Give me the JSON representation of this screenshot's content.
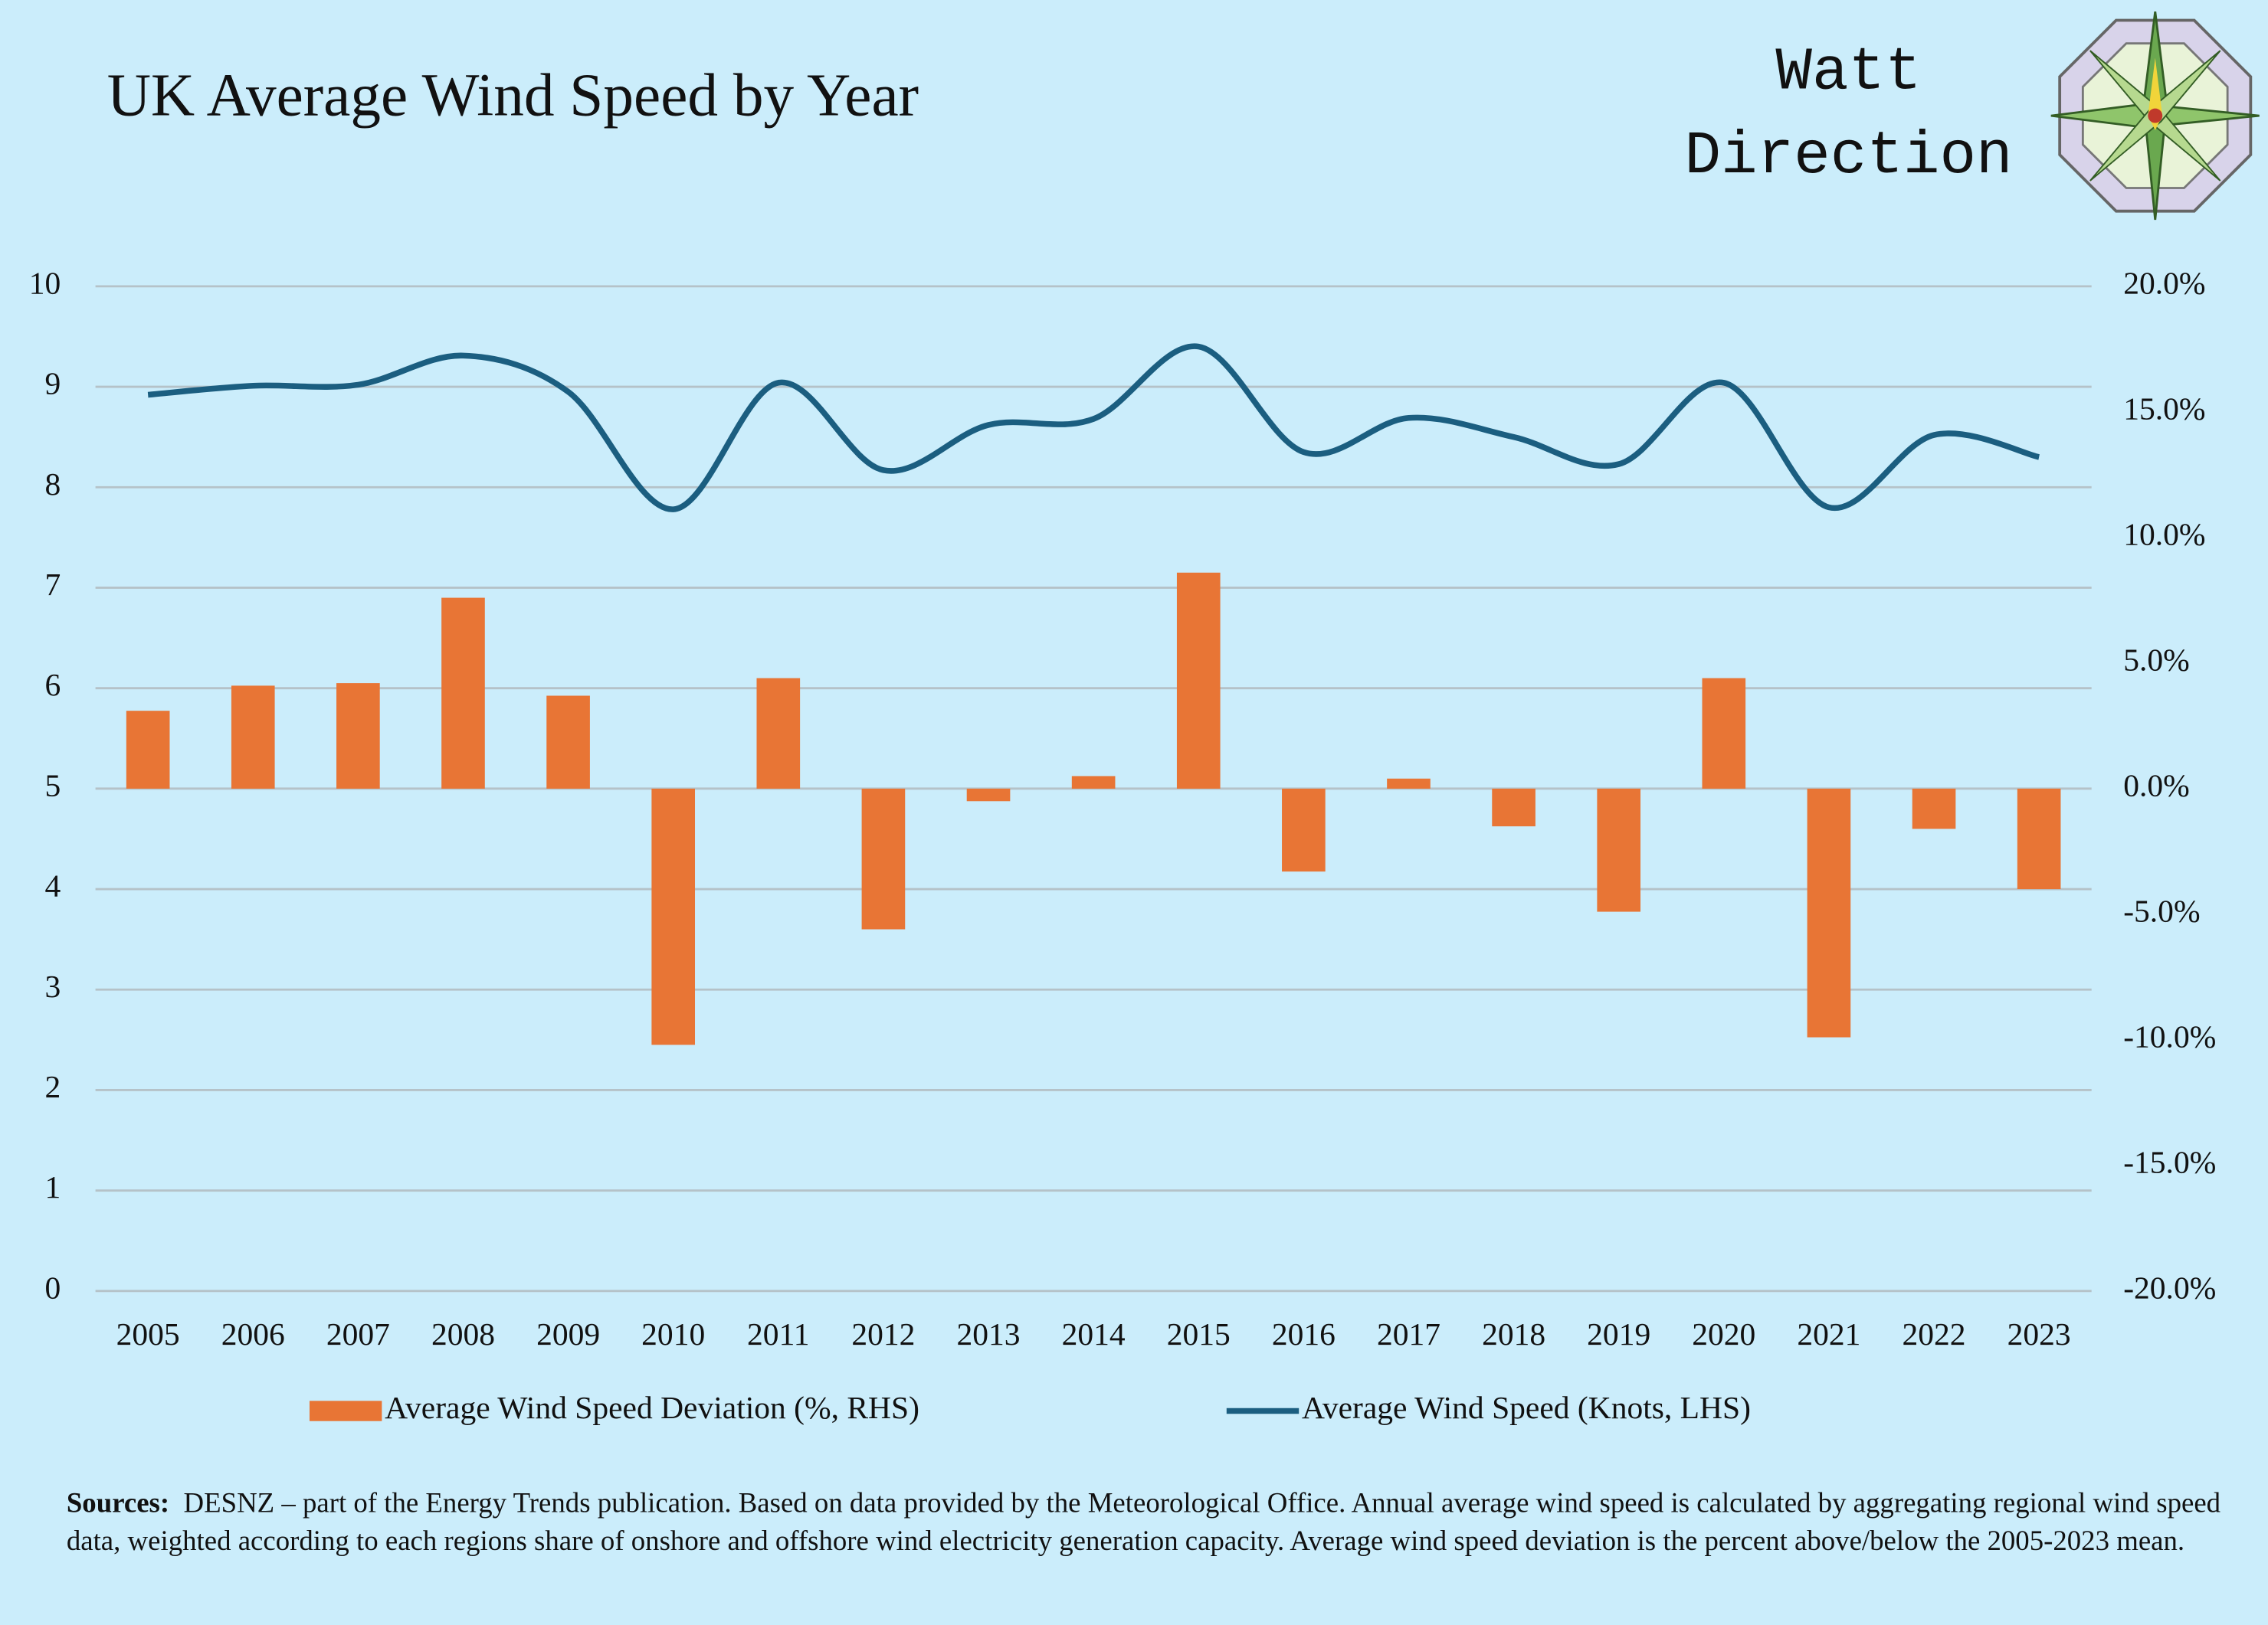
{
  "chart_data": {
    "type": "combo",
    "title": "UK Average Wind Speed by Year",
    "logo": [
      "Watt",
      "Direction"
    ],
    "categories": [
      "2005",
      "2006",
      "2007",
      "2008",
      "2009",
      "2010",
      "2011",
      "2012",
      "2013",
      "2014",
      "2015",
      "2016",
      "2017",
      "2018",
      "2019",
      "2020",
      "2021",
      "2022",
      "2023"
    ],
    "series": [
      {
        "name": "Average Wind Speed Deviation (%, RHS)",
        "type": "bar",
        "axis": "y2",
        "color": "#e87535",
        "values": [
          3.1,
          4.1,
          4.2,
          7.6,
          3.7,
          -10.2,
          4.4,
          -5.6,
          -0.5,
          0.5,
          8.6,
          -3.3,
          0.4,
          -1.5,
          -4.9,
          4.4,
          -9.9,
          -1.6,
          -4.0
        ]
      },
      {
        "name": "Average Wind Speed (Knots, LHS)",
        "type": "line",
        "axis": "y",
        "color": "#1b5e80",
        "values": [
          8.92,
          9.01,
          9.02,
          9.31,
          8.95,
          7.78,
          9.04,
          8.17,
          8.62,
          8.68,
          9.4,
          8.35,
          8.69,
          8.5,
          8.23,
          9.04,
          7.8,
          8.52,
          8.3
        ]
      }
    ],
    "ylim": [
      0,
      10
    ],
    "yticks": [
      0,
      1,
      2,
      3,
      4,
      5,
      6,
      7,
      8,
      9,
      10
    ],
    "y2lim": [
      -20,
      20
    ],
    "y2ticks": [
      {
        "value": -20,
        "label": "-20.0%"
      },
      {
        "value": -15,
        "label": "-15.0%"
      },
      {
        "value": -10,
        "label": "-10.0%"
      },
      {
        "value": -5,
        "label": "-5.0%"
      },
      {
        "value": 0,
        "label": "0.0%"
      },
      {
        "value": 5,
        "label": "5.0%"
      },
      {
        "value": 10,
        "label": "10.0%"
      },
      {
        "value": 15,
        "label": "15.0%"
      },
      {
        "value": 20,
        "label": "20.0%"
      }
    ],
    "grid": true,
    "sources_label": "Sources:",
    "sources_text": "DESNZ – part of the Energy Trends publication. Based on data provided by the Meteorological Office. Annual average wind speed is calculated by aggregating regional wind speed data, weighted according to each regions share of onshore and offshore wind electricity generation capacity.  Average wind speed deviation is the percent above/below the 2005-2023 mean."
  }
}
